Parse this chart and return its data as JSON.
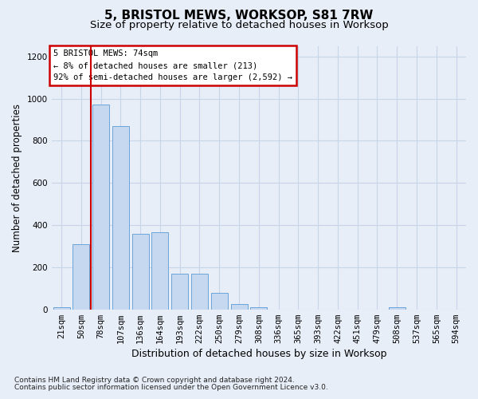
{
  "title": "5, BRISTOL MEWS, WORKSOP, S81 7RW",
  "subtitle": "Size of property relative to detached houses in Worksop",
  "xlabel": "Distribution of detached houses by size in Worksop",
  "ylabel": "Number of detached properties",
  "footnote1": "Contains HM Land Registry data © Crown copyright and database right 2024.",
  "footnote2": "Contains public sector information licensed under the Open Government Licence v3.0.",
  "annotation_title": "5 BRISTOL MEWS: 74sqm",
  "annotation_line1": "← 8% of detached houses are smaller (213)",
  "annotation_line2": "92% of semi-detached houses are larger (2,592) →",
  "bar_color": "#c5d8f0",
  "bar_edge_color": "#5b9bd5",
  "annotation_box_edge_color": "#cc0000",
  "red_line_color": "#cc0000",
  "categories": [
    "21sqm",
    "50sqm",
    "78sqm",
    "107sqm",
    "136sqm",
    "164sqm",
    "193sqm",
    "222sqm",
    "250sqm",
    "279sqm",
    "308sqm",
    "336sqm",
    "365sqm",
    "393sqm",
    "422sqm",
    "451sqm",
    "479sqm",
    "508sqm",
    "537sqm",
    "565sqm",
    "594sqm"
  ],
  "values": [
    10,
    310,
    970,
    870,
    360,
    365,
    170,
    170,
    80,
    25,
    10,
    0,
    0,
    0,
    0,
    0,
    0,
    10,
    0,
    0,
    0
  ],
  "red_line_x": 1.5,
  "ylim": [
    0,
    1250
  ],
  "yticks": [
    0,
    200,
    400,
    600,
    800,
    1000,
    1200
  ],
  "background_color": "#e8eef8",
  "grid_color": "#c8d4e8",
  "title_fontsize": 11,
  "subtitle_fontsize": 9.5,
  "ylabel_fontsize": 8.5,
  "xlabel_fontsize": 9,
  "tick_fontsize": 7.5,
  "annotation_fontsize": 7.5,
  "footnote_fontsize": 6.5
}
